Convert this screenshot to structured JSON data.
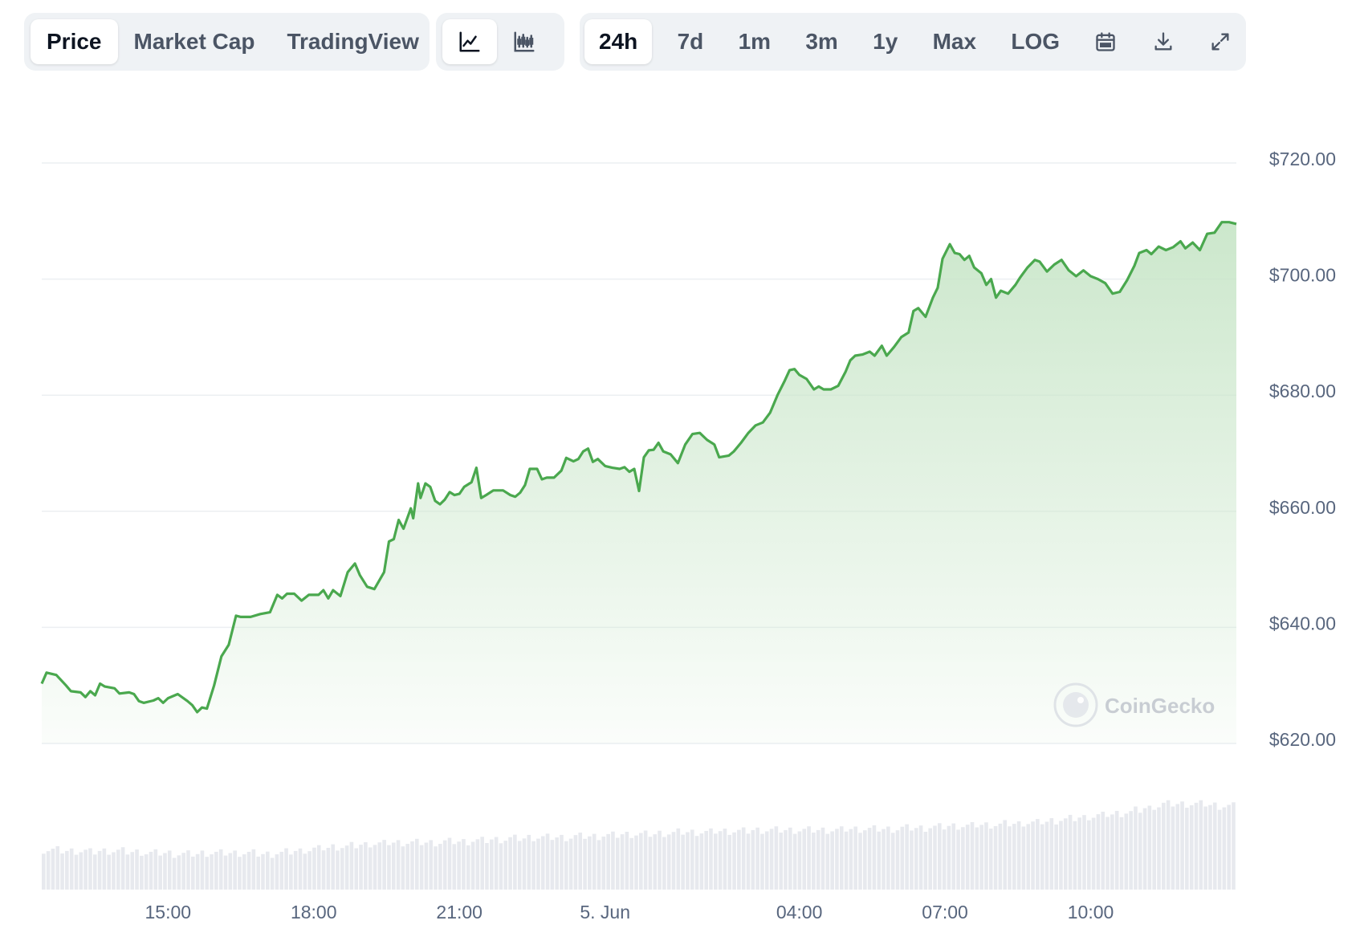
{
  "toolbar": {
    "view_tabs": [
      {
        "label": "Price",
        "active": true
      },
      {
        "label": "Market Cap",
        "active": false
      },
      {
        "label": "TradingView",
        "active": false
      }
    ],
    "chart_type_buttons": [
      {
        "icon": "line-chart-icon",
        "active": true
      },
      {
        "icon": "candlestick-chart-icon",
        "active": false
      }
    ],
    "ranges": [
      {
        "label": "24h",
        "active": true
      },
      {
        "label": "7d",
        "active": false
      },
      {
        "label": "1m",
        "active": false
      },
      {
        "label": "3m",
        "active": false
      },
      {
        "label": "1y",
        "active": false
      },
      {
        "label": "Max",
        "active": false
      },
      {
        "label": "LOG",
        "active": false
      }
    ],
    "actions": [
      {
        "icon": "calendar-icon"
      },
      {
        "icon": "download-icon"
      },
      {
        "icon": "expand-icon"
      }
    ]
  },
  "watermark": "CoinGecko",
  "colors": {
    "line": "#4aa84e",
    "area_top": "#c9e6c9",
    "grid": "#eceff2",
    "volume": "#e7e9ee",
    "axis_text": "#58667e"
  },
  "chart_data": {
    "type": "area",
    "ylim": [
      620,
      720
    ],
    "yticks": [
      620,
      640,
      660,
      680,
      700,
      720
    ],
    "ytick_labels": [
      "$620.00",
      "$640.00",
      "$660.00",
      "$680.00",
      "$700.00",
      "$720.00"
    ],
    "xlim": [
      0,
      24.6
    ],
    "xticks": [
      {
        "x": 2.6,
        "label": "15:00"
      },
      {
        "x": 5.6,
        "label": "18:00"
      },
      {
        "x": 8.6,
        "label": "21:00"
      },
      {
        "x": 11.6,
        "label": "5. Jun"
      },
      {
        "x": 15.6,
        "label": "04:00"
      },
      {
        "x": 18.6,
        "label": "07:00"
      },
      {
        "x": 21.6,
        "label": "10:00"
      }
    ],
    "series": [
      {
        "points": [
          [
            0.0,
            630.3
          ],
          [
            0.1,
            632.2
          ],
          [
            0.3,
            631.8
          ],
          [
            0.5,
            630.0
          ],
          [
            0.6,
            629.0
          ],
          [
            0.8,
            628.8
          ],
          [
            0.9,
            628.0
          ],
          [
            1.0,
            629.0
          ],
          [
            1.1,
            628.3
          ],
          [
            1.2,
            630.3
          ],
          [
            1.3,
            629.8
          ],
          [
            1.5,
            629.5
          ],
          [
            1.6,
            628.6
          ],
          [
            1.8,
            628.8
          ],
          [
            1.9,
            628.5
          ],
          [
            2.0,
            627.3
          ],
          [
            2.1,
            627.0
          ],
          [
            2.3,
            627.4
          ],
          [
            2.4,
            627.8
          ],
          [
            2.5,
            627.0
          ],
          [
            2.6,
            627.8
          ],
          [
            2.8,
            628.5
          ],
          [
            3.0,
            627.3
          ],
          [
            3.1,
            626.6
          ],
          [
            3.2,
            625.4
          ],
          [
            3.3,
            626.2
          ],
          [
            3.4,
            626.0
          ],
          [
            3.55,
            630.0
          ],
          [
            3.7,
            635.0
          ],
          [
            3.85,
            637.0
          ],
          [
            4.0,
            642.0
          ],
          [
            4.1,
            641.8
          ],
          [
            4.3,
            641.8
          ],
          [
            4.5,
            642.3
          ],
          [
            4.7,
            642.6
          ],
          [
            4.85,
            645.6
          ],
          [
            4.95,
            645.0
          ],
          [
            5.05,
            645.8
          ],
          [
            5.2,
            645.8
          ],
          [
            5.35,
            644.6
          ],
          [
            5.5,
            645.6
          ],
          [
            5.7,
            645.6
          ],
          [
            5.8,
            646.4
          ],
          [
            5.9,
            645.0
          ],
          [
            6.0,
            646.4
          ],
          [
            6.15,
            645.4
          ],
          [
            6.3,
            649.5
          ],
          [
            6.45,
            651.0
          ],
          [
            6.55,
            649.0
          ],
          [
            6.7,
            647.0
          ],
          [
            6.85,
            646.6
          ],
          [
            7.05,
            649.5
          ],
          [
            7.15,
            654.8
          ],
          [
            7.25,
            655.2
          ],
          [
            7.35,
            658.5
          ],
          [
            7.45,
            657.0
          ],
          [
            7.6,
            660.5
          ],
          [
            7.65,
            658.8
          ],
          [
            7.75,
            664.8
          ],
          [
            7.8,
            662.3
          ],
          [
            7.9,
            664.8
          ],
          [
            8.0,
            664.2
          ],
          [
            8.1,
            661.8
          ],
          [
            8.2,
            661.2
          ],
          [
            8.3,
            662.0
          ],
          [
            8.4,
            663.3
          ],
          [
            8.5,
            662.8
          ],
          [
            8.6,
            663.0
          ],
          [
            8.7,
            664.2
          ],
          [
            8.85,
            665.0
          ],
          [
            8.95,
            667.5
          ],
          [
            9.05,
            662.3
          ],
          [
            9.15,
            662.8
          ],
          [
            9.3,
            663.6
          ],
          [
            9.5,
            663.6
          ],
          [
            9.65,
            662.8
          ],
          [
            9.75,
            662.5
          ],
          [
            9.85,
            663.2
          ],
          [
            9.95,
            664.5
          ],
          [
            10.05,
            667.3
          ],
          [
            10.2,
            667.3
          ],
          [
            10.3,
            665.5
          ],
          [
            10.4,
            665.8
          ],
          [
            10.55,
            665.8
          ],
          [
            10.7,
            667.0
          ],
          [
            10.8,
            669.2
          ],
          [
            10.95,
            668.6
          ],
          [
            11.05,
            669.0
          ],
          [
            11.15,
            670.3
          ],
          [
            11.25,
            670.8
          ],
          [
            11.35,
            668.5
          ],
          [
            11.45,
            669.0
          ],
          [
            11.6,
            667.8
          ],
          [
            11.75,
            667.5
          ],
          [
            11.9,
            667.3
          ],
          [
            12.0,
            667.6
          ],
          [
            12.1,
            666.8
          ],
          [
            12.2,
            667.3
          ],
          [
            12.3,
            663.5
          ],
          [
            12.4,
            669.3
          ],
          [
            12.5,
            670.5
          ],
          [
            12.6,
            670.6
          ],
          [
            12.7,
            671.8
          ],
          [
            12.8,
            670.3
          ],
          [
            12.95,
            669.8
          ],
          [
            13.1,
            668.3
          ],
          [
            13.25,
            671.5
          ],
          [
            13.4,
            673.3
          ],
          [
            13.55,
            673.5
          ],
          [
            13.7,
            672.3
          ],
          [
            13.85,
            671.5
          ],
          [
            13.95,
            669.3
          ],
          [
            14.15,
            669.6
          ],
          [
            14.25,
            670.3
          ],
          [
            14.4,
            671.8
          ],
          [
            14.55,
            673.5
          ],
          [
            14.7,
            674.8
          ],
          [
            14.85,
            675.3
          ],
          [
            15.0,
            677.0
          ],
          [
            15.15,
            680.0
          ],
          [
            15.3,
            682.5
          ],
          [
            15.4,
            684.3
          ],
          [
            15.5,
            684.5
          ],
          [
            15.6,
            683.5
          ],
          [
            15.75,
            682.8
          ],
          [
            15.9,
            681.0
          ],
          [
            16.0,
            681.5
          ],
          [
            16.1,
            681.0
          ],
          [
            16.25,
            681.0
          ],
          [
            16.4,
            681.6
          ],
          [
            16.55,
            684.0
          ],
          [
            16.65,
            686.0
          ],
          [
            16.75,
            686.8
          ],
          [
            16.9,
            687.0
          ],
          [
            17.05,
            687.5
          ],
          [
            17.15,
            686.8
          ],
          [
            17.3,
            688.5
          ],
          [
            17.4,
            686.8
          ],
          [
            17.55,
            688.3
          ],
          [
            17.7,
            690.0
          ],
          [
            17.85,
            690.8
          ],
          [
            17.95,
            694.5
          ],
          [
            18.05,
            695.0
          ],
          [
            18.2,
            693.5
          ],
          [
            18.35,
            696.8
          ],
          [
            18.45,
            698.5
          ],
          [
            18.55,
            703.5
          ],
          [
            18.7,
            706.0
          ],
          [
            18.8,
            704.5
          ],
          [
            18.9,
            704.3
          ],
          [
            19.0,
            703.3
          ],
          [
            19.1,
            704.0
          ],
          [
            19.2,
            702.0
          ],
          [
            19.35,
            701.0
          ],
          [
            19.45,
            699.0
          ],
          [
            19.55,
            700.0
          ],
          [
            19.65,
            696.8
          ],
          [
            19.75,
            698.0
          ],
          [
            19.9,
            697.5
          ],
          [
            20.05,
            699.0
          ],
          [
            20.15,
            700.3
          ],
          [
            20.3,
            702.0
          ],
          [
            20.45,
            703.3
          ],
          [
            20.55,
            703.0
          ],
          [
            20.7,
            701.3
          ],
          [
            20.85,
            702.5
          ],
          [
            21.0,
            703.3
          ],
          [
            21.15,
            701.5
          ],
          [
            21.3,
            700.5
          ],
          [
            21.45,
            701.5
          ],
          [
            21.6,
            700.5
          ],
          [
            21.75,
            700.0
          ],
          [
            21.9,
            699.3
          ],
          [
            22.05,
            697.5
          ],
          [
            22.2,
            697.8
          ],
          [
            22.35,
            699.8
          ],
          [
            22.5,
            702.3
          ],
          [
            22.6,
            704.5
          ],
          [
            22.75,
            705.0
          ],
          [
            22.85,
            704.3
          ],
          [
            23.0,
            705.6
          ],
          [
            23.15,
            705.0
          ],
          [
            23.3,
            705.5
          ],
          [
            23.45,
            706.5
          ],
          [
            23.55,
            705.3
          ],
          [
            23.7,
            706.3
          ],
          [
            23.85,
            705.0
          ],
          [
            24.0,
            707.8
          ],
          [
            24.15,
            708.0
          ],
          [
            24.3,
            709.8
          ],
          [
            24.45,
            709.8
          ],
          [
            24.6,
            709.5
          ]
        ]
      }
    ],
    "volume": {
      "x_start": 0.0,
      "x_end": 24.6,
      "values": [
        0.38,
        0.38,
        0.37,
        0.37,
        0.37,
        0.36,
        0.37,
        0.37,
        0.37,
        0.36,
        0.36,
        0.35,
        0.35,
        0.35,
        0.34,
        0.34,
        0.34,
        0.35,
        0.35,
        0.35,
        0.35,
        0.35,
        0.35,
        0.34,
        0.34,
        0.35,
        0.36,
        0.37,
        0.38,
        0.39,
        0.4,
        0.41,
        0.41,
        0.42,
        0.43,
        0.44,
        0.44,
        0.45,
        0.45,
        0.45,
        0.45,
        0.45,
        0.45,
        0.46,
        0.46,
        0.46,
        0.47,
        0.47,
        0.48,
        0.48,
        0.49,
        0.49,
        0.5,
        0.5,
        0.5,
        0.5,
        0.5,
        0.51,
        0.51,
        0.51,
        0.52,
        0.52,
        0.53,
        0.53,
        0.53,
        0.53,
        0.54,
        0.54,
        0.55,
        0.55,
        0.55,
        0.55,
        0.56,
        0.56,
        0.56,
        0.56,
        0.57,
        0.57,
        0.57,
        0.57,
        0.57,
        0.57,
        0.57,
        0.57,
        0.57,
        0.57,
        0.58,
        0.58,
        0.58,
        0.58,
        0.58,
        0.58,
        0.59,
        0.59,
        0.59,
        0.6,
        0.6,
        0.61,
        0.61,
        0.61,
        0.62,
        0.62,
        0.62,
        0.63,
        0.63,
        0.64,
        0.64,
        0.65,
        0.66,
        0.67,
        0.68,
        0.69,
        0.7,
        0.71,
        0.72,
        0.73,
        0.74,
        0.76,
        0.78,
        0.8,
        0.82,
        0.82,
        0.82,
        0.82,
        0.82,
        0.81,
        0.8,
        0.8
      ]
    }
  }
}
